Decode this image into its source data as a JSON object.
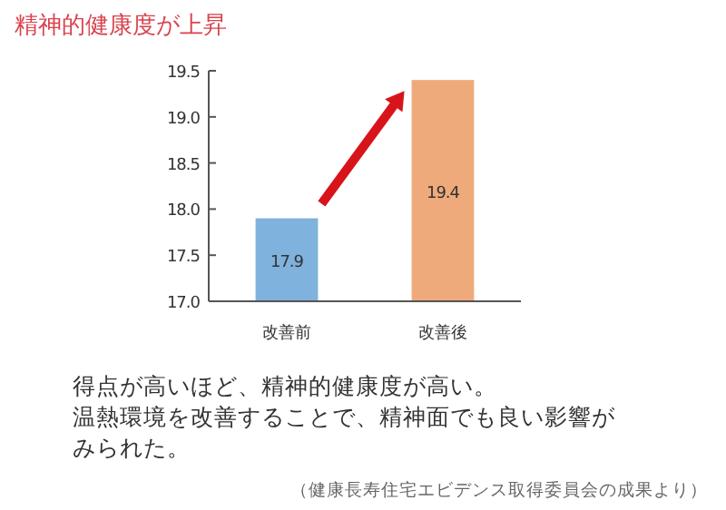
{
  "chart_data": {
    "type": "bar",
    "title": "精神的健康度が上昇",
    "categories": [
      "改善前",
      "改善後"
    ],
    "values": [
      17.9,
      19.4
    ],
    "colors": [
      "#7fb2dd",
      "#efaa7c"
    ],
    "ylim": [
      17.0,
      19.5
    ],
    "yticks": [
      {
        "value": 17.0,
        "label": "17.0"
      },
      {
        "value": 17.5,
        "label": "17.5"
      },
      {
        "value": 18.0,
        "label": "18.0"
      },
      {
        "value": 18.5,
        "label": "18.5"
      },
      {
        "value": 19.0,
        "label": "19.0"
      },
      {
        "value": 19.5,
        "label": "19.5"
      }
    ],
    "data_labels": true,
    "annotations": [
      "得点が高いほど、精神的健康度が高い。温熱環境を改善することで、精神面でも良い影響がみられた。",
      "（健康長寿住宅エビデンス取得委員会の成果より）"
    ]
  }
}
